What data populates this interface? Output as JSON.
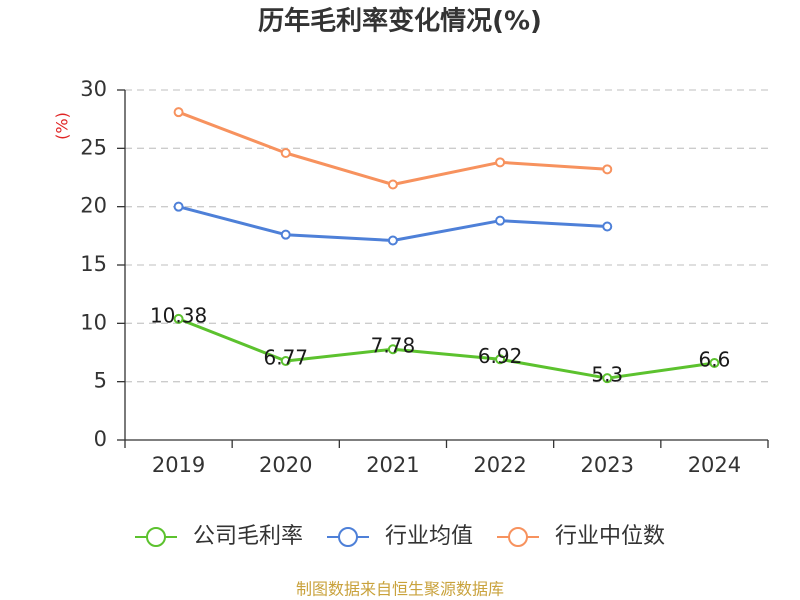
{
  "chart_data": {
    "type": "line",
    "title": "历年毛利率变化情况(%)",
    "ylabel": "(%)",
    "ylabel_color": "#e02424",
    "categories": [
      "2019",
      "2020",
      "2021",
      "2022",
      "2023",
      "2024"
    ],
    "ylim": [
      0,
      30
    ],
    "yticks": [
      0,
      5,
      10,
      15,
      20,
      25,
      30
    ],
    "grid": true,
    "legend_position": "bottom",
    "series": [
      {
        "name": "公司毛利率",
        "color": "#5cc22e",
        "data_labels": true,
        "values": [
          10.38,
          6.77,
          7.78,
          6.92,
          5.3,
          6.6
        ]
      },
      {
        "name": "行业均值",
        "color": "#4e80d8",
        "data_labels": false,
        "values": [
          20.0,
          17.6,
          17.1,
          18.8,
          18.3,
          null
        ]
      },
      {
        "name": "行业中位数",
        "color": "#f7925e",
        "data_labels": false,
        "values": [
          28.1,
          24.6,
          21.9,
          23.8,
          23.2,
          null
        ]
      }
    ]
  },
  "footer": {
    "source": "制图数据来自恒生聚源数据库",
    "color": "#c9a23c"
  }
}
